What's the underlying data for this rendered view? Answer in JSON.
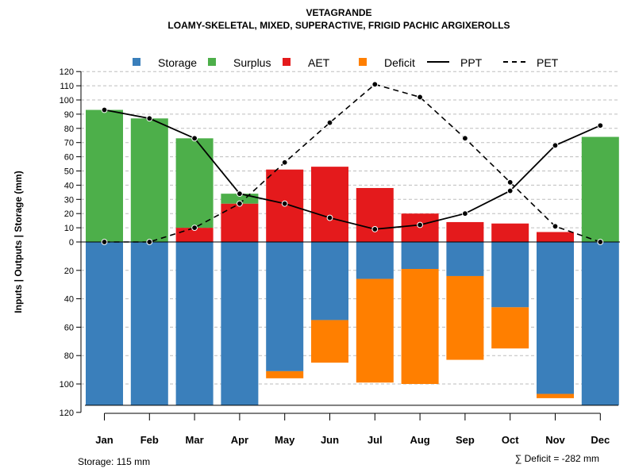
{
  "chart_data": {
    "type": "bar",
    "title": "VETAGRANDE",
    "subtitle": "LOAMY-SKELETAL, MIXED, SUPERACTIVE, FRIGID PACHIC ARGIXEROLLS",
    "ylabel": "Inputs | Outputs | Storage    (mm)",
    "ylim": [
      -120,
      120
    ],
    "y_ticks_pos": [
      0,
      10,
      20,
      30,
      40,
      50,
      60,
      70,
      80,
      90,
      100,
      110,
      120
    ],
    "y_ticks_neg": [
      20,
      40,
      60,
      80,
      100,
      120
    ],
    "categories": [
      "Jan",
      "Feb",
      "Mar",
      "Apr",
      "May",
      "Jun",
      "Jul",
      "Aug",
      "Sep",
      "Oct",
      "Nov",
      "Dec"
    ],
    "legend": [
      "Storage",
      "Surplus",
      "AET",
      "Deficit",
      "PPT",
      "PET"
    ],
    "series": [
      {
        "name": "AET",
        "values": [
          0,
          0,
          10,
          27,
          51,
          53,
          38,
          20,
          14,
          13,
          7,
          0
        ]
      },
      {
        "name": "Surplus",
        "values": [
          93,
          87,
          63,
          7,
          0,
          0,
          0,
          0,
          0,
          0,
          0,
          74
        ]
      },
      {
        "name": "Storage",
        "values": [
          115,
          115,
          115,
          115,
          91,
          55,
          26,
          19,
          24,
          46,
          107,
          115
        ]
      },
      {
        "name": "Deficit",
        "values": [
          0,
          0,
          0,
          0,
          5,
          30,
          73,
          81,
          59,
          29,
          3,
          0
        ]
      },
      {
        "name": "PPT",
        "values": [
          93,
          87,
          73,
          34,
          27,
          17,
          9,
          12,
          20,
          36,
          68,
          82
        ]
      },
      {
        "name": "PET",
        "values": [
          0,
          0,
          10,
          27,
          56,
          84,
          111,
          102,
          73,
          42,
          11,
          0
        ]
      }
    ],
    "storage_capacity": 115,
    "colors": {
      "Storage": "#3a7fbb",
      "Surplus": "#4daf4a",
      "AET": "#e41a1c",
      "Deficit": "#ff7f00"
    }
  },
  "footer": {
    "storage_text": "Storage: 115 mm",
    "deficit_text": "∑ Deficit = -282 mm"
  }
}
